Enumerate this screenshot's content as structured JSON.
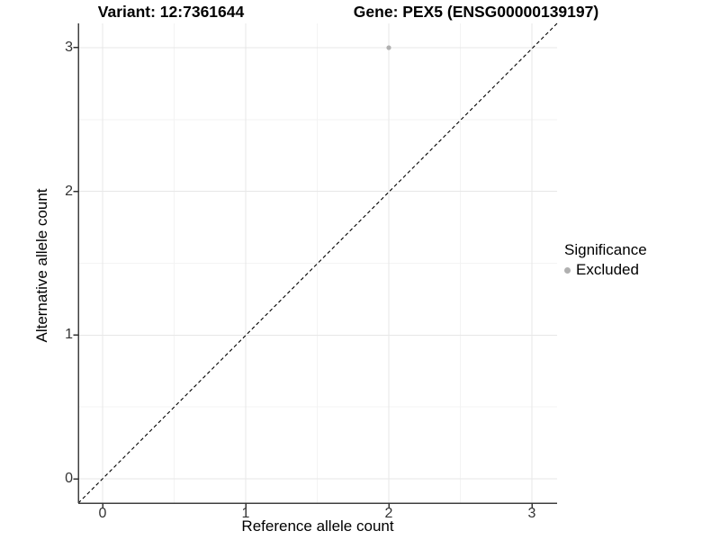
{
  "chart_data": {
    "type": "scatter",
    "title_left": "Variant: 12:7361644",
    "title_right": "Gene: PEX5 (ENSG00000139197)",
    "xlabel": "Reference allele count",
    "ylabel": "Alternative allele count",
    "x_ticks": [
      0,
      1,
      2,
      3
    ],
    "y_ticks": [
      0,
      1,
      2,
      3
    ],
    "minor_ticks": [
      0.5,
      1.5,
      2.5
    ],
    "xlim": [
      -0.17,
      3.17
    ],
    "ylim": [
      -0.17,
      3.17
    ],
    "grid": "major+minor",
    "reference_line": {
      "kind": "identity y=x",
      "linetype": "dashed",
      "color": "#000000"
    },
    "series": [
      {
        "name": "Excluded",
        "color": "#b0b0b0",
        "point_radius": 2.6,
        "points": [
          {
            "x": 2,
            "y": 3
          }
        ]
      }
    ],
    "legend": {
      "title": "Significance",
      "position": "right",
      "items": [
        {
          "label": "Excluded",
          "color": "#b0b0b0",
          "shape": "circle"
        }
      ]
    },
    "colors": {
      "grid_major": "#e7e7e7",
      "grid_minor": "#f3f3f3",
      "axis_line": "#3f3f3f",
      "tick_mark": "#333333",
      "background": "#ffffff",
      "text": "#000000"
    }
  }
}
